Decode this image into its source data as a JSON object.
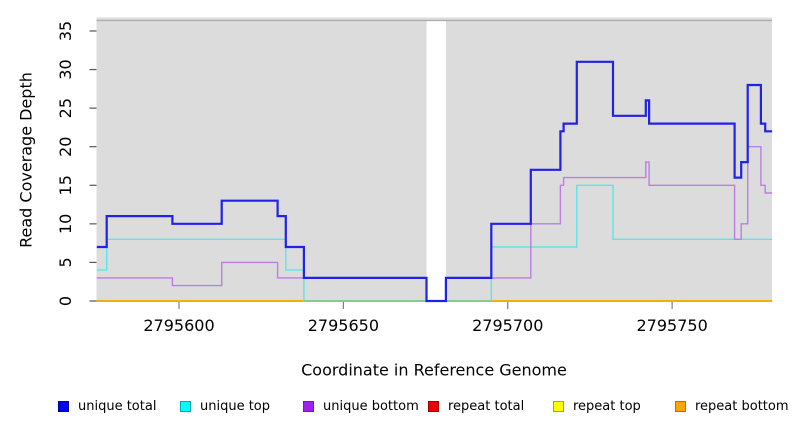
{
  "chart_data": {
    "type": "line",
    "subtype": "step",
    "title": "",
    "xlabel": "Coordinate in Reference Genome",
    "ylabel": "Read Coverage Depth",
    "x_domain": [
      2795575,
      2795780.4
    ],
    "ylim": [
      0,
      36.8
    ],
    "x_tick_values": [
      2795600,
      2795650,
      2795700,
      2795750
    ],
    "x_tick_labels": [
      "2795600",
      "2795650",
      "2795700",
      "2795750"
    ],
    "y_tick_values": [
      0,
      5,
      10,
      15,
      20,
      25,
      30,
      35
    ],
    "y_tick_labels": [
      "0",
      "5",
      "10",
      "15",
      "20",
      "25",
      "30",
      "35"
    ],
    "grid": false,
    "legend_position": "bottom",
    "plot_background": "#DCDCDC",
    "top_border_color": "#ABABAB",
    "gap_region": {
      "x_start": 2795675.3,
      "x_end": 2795681.2,
      "fill": "#FFFFFF"
    },
    "series": [
      {
        "name": "unique total",
        "color": "#2121EC",
        "line_width": 2.2,
        "steps": [
          [
            2795575,
            7
          ],
          [
            2795578,
            11
          ],
          [
            2795598,
            10
          ],
          [
            2795613,
            13
          ],
          [
            2795630,
            11
          ],
          [
            2795632.5,
            7
          ],
          [
            2795638,
            3
          ],
          [
            2795675.3,
            0
          ],
          [
            2795681.2,
            3
          ],
          [
            2795695,
            10
          ],
          [
            2795707,
            17
          ],
          [
            2795716,
            22
          ],
          [
            2795717,
            23
          ],
          [
            2795721,
            31
          ],
          [
            2795732,
            24
          ],
          [
            2795742,
            26
          ],
          [
            2795743,
            23
          ],
          [
            2795769,
            16
          ],
          [
            2795771,
            18
          ],
          [
            2795773,
            28
          ],
          [
            2795777,
            23
          ],
          [
            2795778.3,
            22
          ]
        ]
      },
      {
        "name": "unique top",
        "color": "#5CE6E6",
        "line_width": 1.4,
        "steps": [
          [
            2795575,
            4
          ],
          [
            2795578,
            8
          ],
          [
            2795632.5,
            4
          ],
          [
            2795638,
            0
          ],
          [
            2795695,
            7
          ],
          [
            2795721,
            15
          ],
          [
            2795732,
            8
          ]
        ]
      },
      {
        "name": "unique bottom",
        "color": "#BD7DE4",
        "line_width": 1.4,
        "steps": [
          [
            2795575,
            3
          ],
          [
            2795598,
            2
          ],
          [
            2795613,
            5
          ],
          [
            2795630,
            3
          ],
          [
            2795675.3,
            0
          ],
          [
            2795681.2,
            3
          ],
          [
            2795707,
            10
          ],
          [
            2795716,
            15
          ],
          [
            2795717,
            16
          ],
          [
            2795742,
            18
          ],
          [
            2795743,
            15
          ],
          [
            2795769,
            8
          ],
          [
            2795771,
            10
          ],
          [
            2795773,
            20
          ],
          [
            2795777,
            15
          ],
          [
            2795778.3,
            14
          ]
        ]
      },
      {
        "name": "repeat total",
        "color": "#DD2222",
        "line_width": 1.4,
        "steps": [
          [
            2795575,
            0
          ]
        ]
      },
      {
        "name": "repeat top",
        "color": "#EEEE22",
        "line_width": 1.4,
        "steps": [
          [
            2795575,
            0
          ]
        ]
      },
      {
        "name": "repeat bottom",
        "color": "#FFA500",
        "line_width": 1.6,
        "steps": [
          [
            2795575,
            0
          ]
        ]
      }
    ],
    "zero_overlap_segments": [
      {
        "x_start": 2795638,
        "x_end": 2795675.3,
        "y": 0,
        "color": "#7CCE8F"
      },
      {
        "x_start": 2795681.2,
        "x_end": 2795695,
        "y": 0,
        "color": "#7CCE8F"
      }
    ]
  },
  "legend": {
    "items": [
      {
        "label": "unique total",
        "fill": "#0000EE",
        "border": "#0000A0"
      },
      {
        "label": "unique top",
        "fill": "#00FFFF",
        "border": "#00AAAA"
      },
      {
        "label": "unique bottom",
        "fill": "#A020F0",
        "border": "#7718B5"
      },
      {
        "label": "repeat total",
        "fill": "#EE0000",
        "border": "#A00000"
      },
      {
        "label": "repeat top",
        "fill": "#FFFF00",
        "border": "#AAAA00"
      },
      {
        "label": "repeat bottom",
        "fill": "#FFA500",
        "border": "#B87400"
      }
    ]
  }
}
